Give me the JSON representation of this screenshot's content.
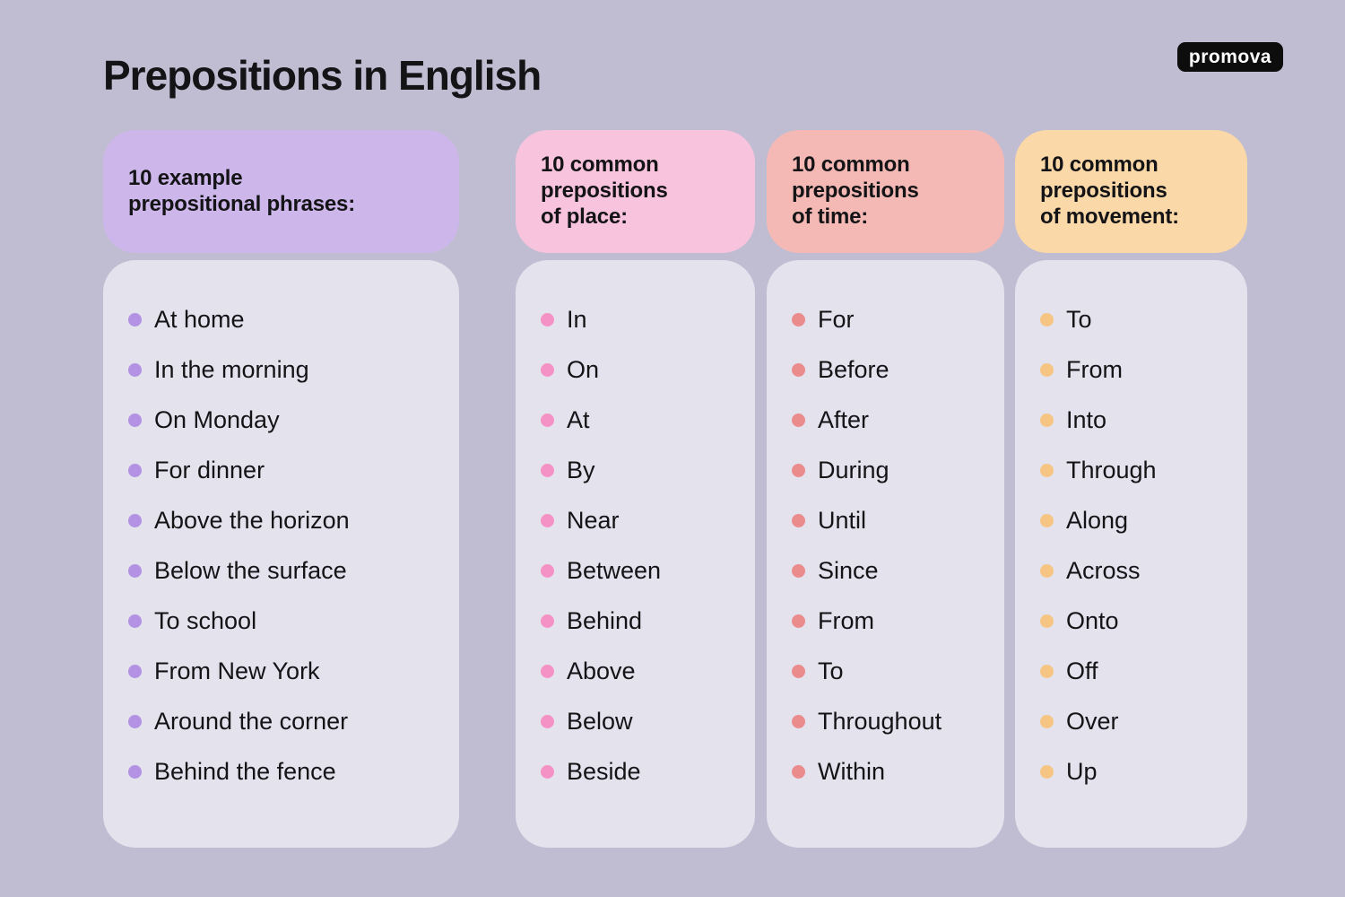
{
  "title": "Prepositions in English",
  "logo": {
    "text": "promova"
  },
  "theme": {
    "background": "#c0bdd2",
    "panel": "#e4e2ed",
    "text": "#141417",
    "logo_bg": "#0d0d0d",
    "logo_text_color": "#ffffff"
  },
  "columns": [
    {
      "header_lines": [
        "10 example",
        "prepositional phrases:"
      ],
      "header_bg": "#ccb6ea",
      "bullet_color": "#b392e3",
      "items": [
        "At home",
        "In the morning",
        "On Monday",
        "For dinner",
        "Above the horizon",
        "Below the surface",
        "To school",
        "From New York",
        "Around the corner",
        "Behind the fence"
      ]
    },
    {
      "header_lines": [
        "10 common",
        "prepositions",
        "of place:"
      ],
      "header_bg": "#f7c3dd",
      "bullet_color": "#f592c5",
      "items": [
        "In",
        "On",
        "At",
        "By",
        "Near",
        "Between",
        "Behind",
        "Above",
        "Below",
        "Beside"
      ]
    },
    {
      "header_lines": [
        "10 common",
        "prepositions",
        "of time:"
      ],
      "header_bg": "#f4b9b5",
      "bullet_color": "#ea8c8c",
      "items": [
        "For",
        "Before",
        "After",
        "During",
        "Until",
        "Since",
        "From",
        "To",
        "Throughout",
        "Within"
      ]
    },
    {
      "header_lines": [
        "10 common",
        "prepositions",
        "of movement:"
      ],
      "header_bg": "#fbd8a7",
      "bullet_color": "#f6c584",
      "items": [
        "To",
        "From",
        "Into",
        "Through",
        "Along",
        "Across",
        "Onto",
        "Off",
        "Over",
        "Up"
      ]
    }
  ]
}
